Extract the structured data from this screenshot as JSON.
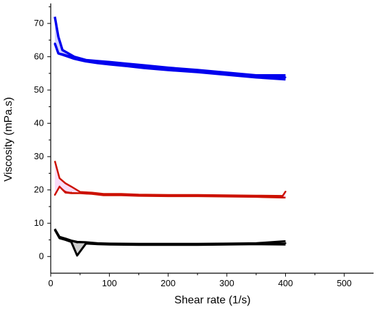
{
  "chart_data": {
    "type": "line",
    "title": "",
    "xlabel": "Shear rate (1/s)",
    "ylabel": "Viscosity (mPa.s)",
    "xlim": [
      0,
      550
    ],
    "ylim": [
      -5,
      76
    ],
    "xticks": [
      0,
      100,
      200,
      300,
      400,
      500
    ],
    "yticks": [
      0,
      10,
      20,
      30,
      40,
      50,
      60,
      70
    ],
    "grid": false,
    "legend": "none",
    "series": [
      {
        "color": "#0000ee",
        "band_color": "#7f7fff",
        "stroke_width": 3.5,
        "x": [
          7,
          13,
          20,
          30,
          40,
          50,
          60,
          80,
          100,
          130,
          160,
          200,
          250,
          300,
          350,
          400
        ],
        "values": [
          64,
          61,
          60.8,
          60.3,
          59.7,
          59.3,
          59,
          58.5,
          58.2,
          57.8,
          57.1,
          56.5,
          55.8,
          55,
          54.3,
          53.8
        ],
        "upper": [
          72,
          66,
          62,
          61,
          60,
          59.5,
          59,
          58.7,
          58.4,
          57.9,
          57.4,
          56.7,
          56,
          55.2,
          54.4,
          54.4
        ],
        "lower": [
          64,
          61,
          60.6,
          60,
          59.4,
          59,
          58.6,
          58.1,
          57.7,
          57.2,
          56.6,
          56,
          55.4,
          54.6,
          53.8,
          53.2
        ]
      },
      {
        "color": "#cc1100",
        "band_color": "#ee99ee",
        "stroke_width": 2.5,
        "x": [
          7,
          15,
          25,
          35,
          50,
          70,
          90,
          120,
          150,
          200,
          250,
          300,
          350,
          395,
          400
        ],
        "values": [
          18.5,
          21,
          19.5,
          19.2,
          19.1,
          19,
          18.6,
          18.6,
          18.4,
          18.3,
          18.3,
          18.2,
          18.2,
          18,
          19.5
        ],
        "upper": [
          28.7,
          23.5,
          22,
          21,
          19.4,
          19.2,
          18.8,
          18.8,
          18.6,
          18.5,
          18.5,
          18.4,
          18.3,
          18.2,
          19.5
        ],
        "lower": [
          18.5,
          21,
          19.2,
          19,
          19,
          18.8,
          18.4,
          18.4,
          18.2,
          18.1,
          18.1,
          18,
          17.9,
          17.7,
          17.7
        ]
      },
      {
        "color": "#000000",
        "band_color": "#777777",
        "stroke_width": 3,
        "x": [
          7,
          15,
          25,
          35,
          45,
          60,
          80,
          100,
          150,
          200,
          250,
          300,
          350,
          400
        ],
        "values": [
          8,
          5.7,
          5.2,
          4.6,
          4.2,
          4.2,
          3.9,
          3.8,
          3.7,
          3.7,
          3.7,
          3.8,
          3.9,
          4
        ],
        "upper": [
          8.3,
          5.9,
          5.4,
          4.8,
          4.4,
          4.3,
          4,
          3.9,
          3.8,
          3.8,
          3.8,
          3.9,
          4,
          4.6
        ],
        "lower": [
          8,
          5.5,
          5,
          4.4,
          0.3,
          3.9,
          3.7,
          3.6,
          3.5,
          3.5,
          3.5,
          3.6,
          3.7,
          3.6
        ]
      }
    ]
  }
}
